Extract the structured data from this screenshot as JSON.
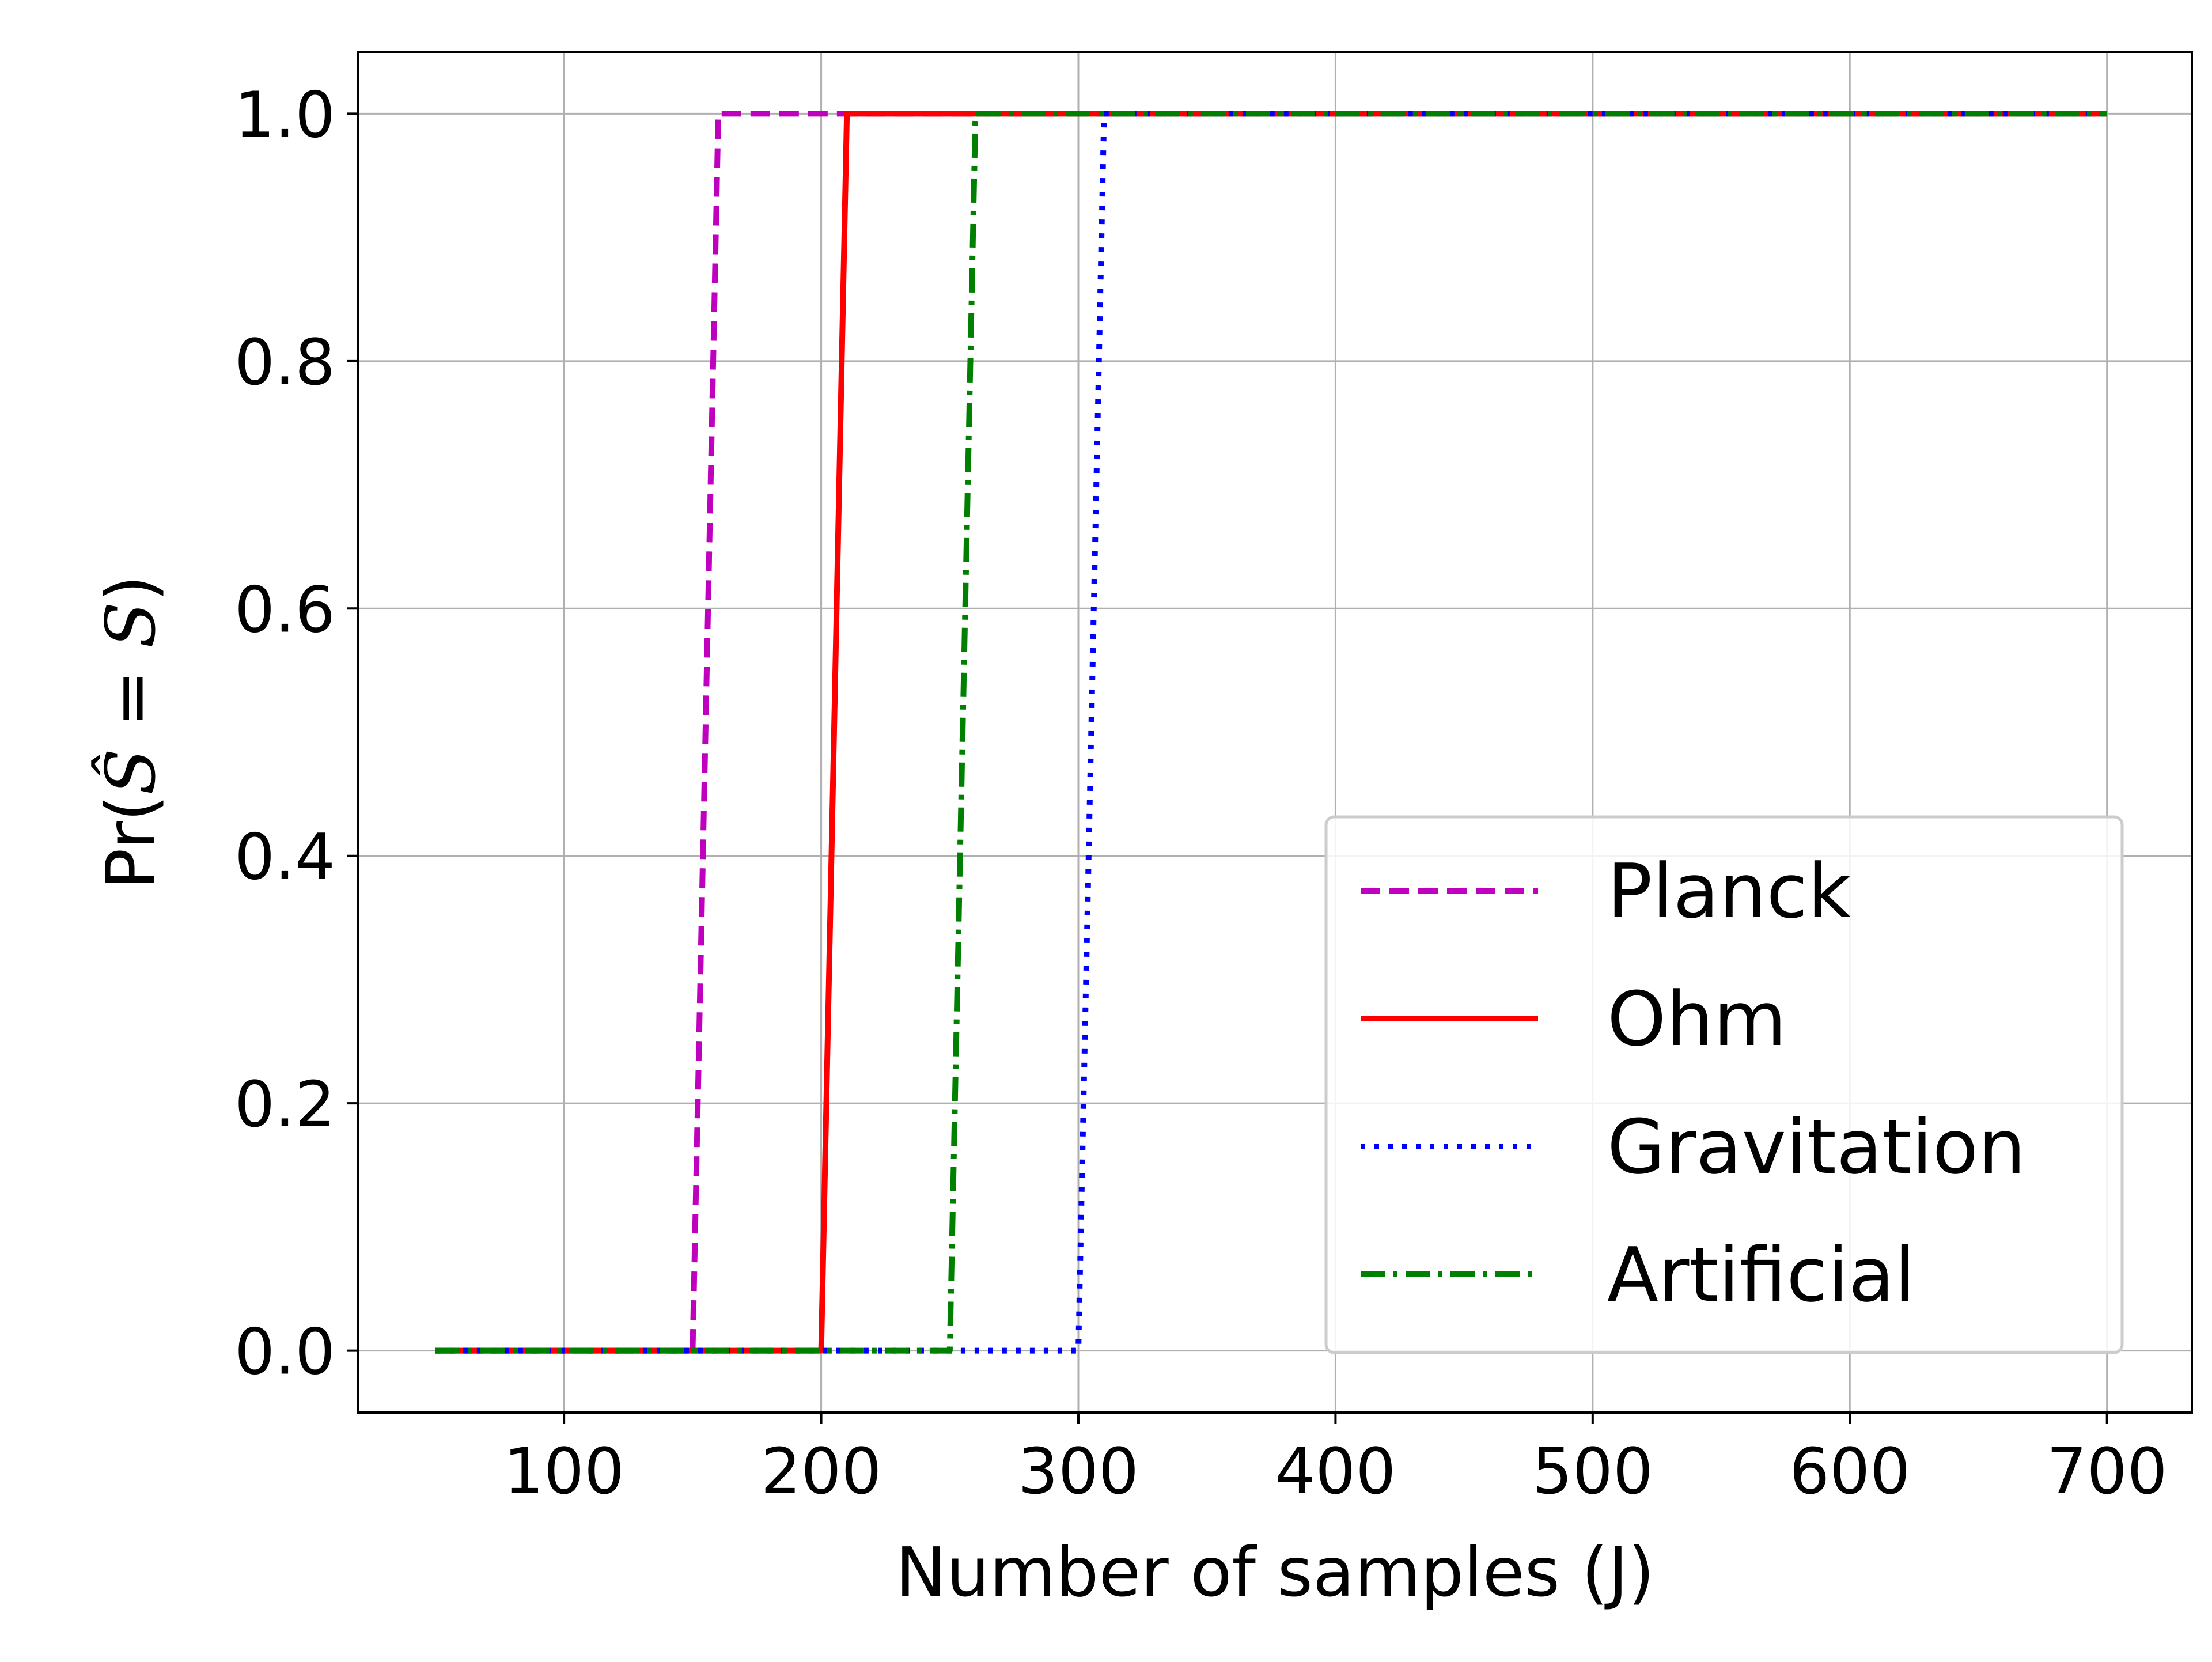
{
  "chart_data": {
    "type": "line",
    "title": "",
    "xlabel": "Number of samples (J)",
    "ylabel_prefix": "Pr(",
    "ylabel_s_hat": "Ŝ",
    "ylabel_eq": " = ",
    "ylabel_s": "S",
    "ylabel_suffix": ")",
    "xlim": [
      20,
      733
    ],
    "ylim": [
      -0.05,
      1.05
    ],
    "xticks": [
      100,
      200,
      300,
      400,
      500,
      600,
      700
    ],
    "xtick_labels": [
      "100",
      "200",
      "300",
      "400",
      "500",
      "600",
      "700"
    ],
    "yticks": [
      0.0,
      0.2,
      0.4,
      0.6,
      0.8,
      1.0
    ],
    "ytick_labels": [
      "0.0",
      "0.2",
      "0.4",
      "0.6",
      "0.8",
      "1.0"
    ],
    "grid": true,
    "legend_position": "lower-right",
    "series": [
      {
        "name": "Planck",
        "color": "#bf00bf",
        "style": "dashed",
        "x": [
          50,
          100,
          150,
          160,
          200,
          250,
          300,
          350,
          400,
          450,
          500,
          550,
          600,
          650,
          700
        ],
        "y": [
          0,
          0,
          0,
          1,
          1,
          1,
          1,
          1,
          1,
          1,
          1,
          1,
          1,
          1,
          1
        ]
      },
      {
        "name": "Ohm",
        "color": "#ff0000",
        "style": "solid",
        "x": [
          50,
          100,
          150,
          200,
          210,
          250,
          300,
          350,
          400,
          450,
          500,
          550,
          600,
          650,
          700
        ],
        "y": [
          0,
          0,
          0,
          0,
          1,
          1,
          1,
          1,
          1,
          1,
          1,
          1,
          1,
          1,
          1
        ]
      },
      {
        "name": "Gravitation",
        "color": "#0000ff",
        "style": "dotted",
        "x": [
          50,
          100,
          150,
          200,
          250,
          300,
          310,
          350,
          400,
          450,
          500,
          550,
          600,
          650,
          700
        ],
        "y": [
          0,
          0,
          0,
          0,
          0,
          0,
          1,
          1,
          1,
          1,
          1,
          1,
          1,
          1,
          1
        ]
      },
      {
        "name": "Artificial",
        "color": "#008000",
        "style": "dashdot",
        "x": [
          50,
          100,
          150,
          200,
          250,
          260,
          300,
          350,
          400,
          450,
          500,
          550,
          600,
          650,
          700
        ],
        "y": [
          0,
          0,
          0,
          0,
          0,
          1,
          1,
          1,
          1,
          1,
          1,
          1,
          1,
          1,
          1
        ]
      }
    ]
  },
  "colors": {
    "grid": "#b0b0b0",
    "axes": "#000000",
    "legend_border": "#cccccc"
  }
}
